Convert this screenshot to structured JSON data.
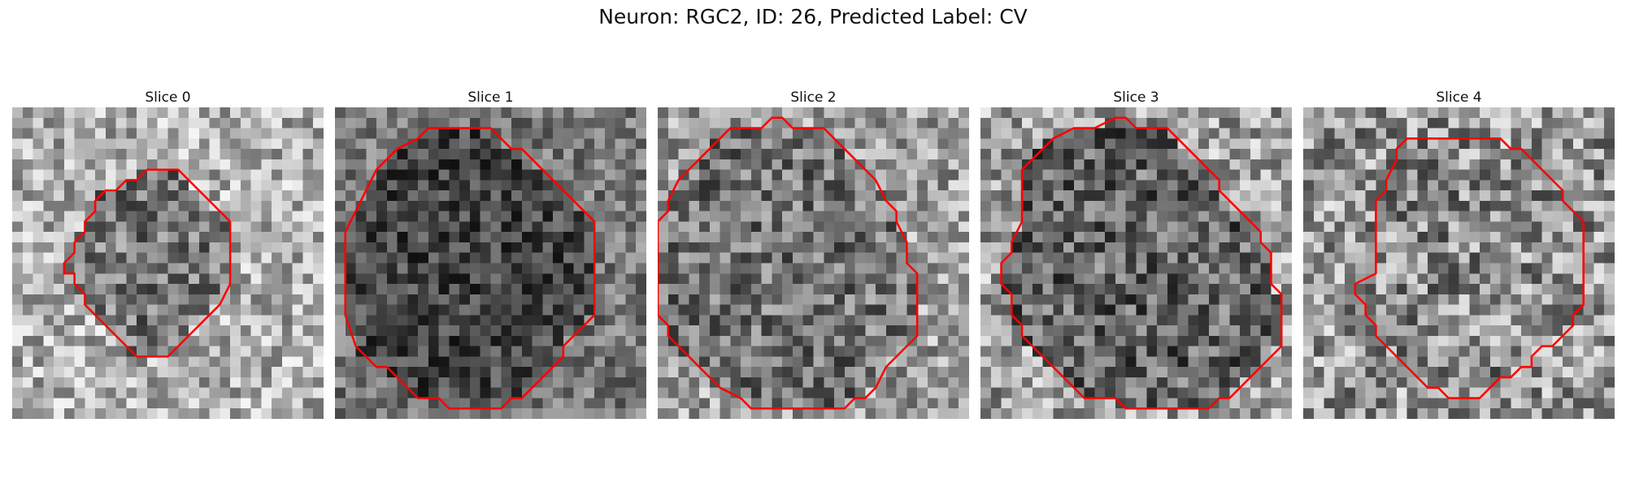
{
  "figure": {
    "title": "Neuron: RGC2, ID: 26, Predicted Label: CV"
  },
  "contour_color": "#ff0000",
  "colormap": "gray",
  "slices": [
    {
      "title": "Slice 0",
      "contour": [
        [
          15,
          6
        ],
        [
          16,
          6
        ],
        [
          17,
          7
        ],
        [
          19,
          9
        ],
        [
          21,
          11
        ],
        [
          21,
          17
        ],
        [
          20,
          19
        ],
        [
          19,
          20
        ],
        [
          17,
          22
        ],
        [
          16,
          23
        ],
        [
          15,
          24
        ],
        [
          12,
          24
        ],
        [
          11,
          23
        ],
        [
          10,
          22
        ],
        [
          9,
          21
        ],
        [
          8,
          20
        ],
        [
          7,
          19
        ],
        [
          7,
          18
        ],
        [
          6,
          17
        ],
        [
          6,
          16
        ],
        [
          5,
          16
        ],
        [
          5,
          15
        ],
        [
          6,
          14
        ],
        [
          6,
          13
        ],
        [
          7,
          12
        ],
        [
          7,
          11
        ],
        [
          8,
          10
        ],
        [
          8,
          9
        ],
        [
          9,
          8
        ],
        [
          10,
          8
        ],
        [
          11,
          7
        ],
        [
          12,
          7
        ],
        [
          13,
          6
        ]
      ]
    },
    {
      "title": "Slice 1",
      "contour": [
        [
          14,
          2
        ],
        [
          15,
          2
        ],
        [
          16,
          3
        ],
        [
          17,
          4
        ],
        [
          18,
          4
        ],
        [
          19,
          5
        ],
        [
          20,
          6
        ],
        [
          22,
          8
        ],
        [
          23,
          9
        ],
        [
          24,
          10
        ],
        [
          25,
          11
        ],
        [
          25,
          20
        ],
        [
          24,
          21
        ],
        [
          23,
          22
        ],
        [
          22,
          23
        ],
        [
          22,
          24
        ],
        [
          21,
          25
        ],
        [
          19,
          27
        ],
        [
          18,
          28
        ],
        [
          17,
          28
        ],
        [
          16,
          29
        ],
        [
          11,
          29
        ],
        [
          10,
          28
        ],
        [
          8,
          28
        ],
        [
          6,
          26
        ],
        [
          5,
          25
        ],
        [
          4,
          25
        ],
        [
          3,
          24
        ],
        [
          2,
          23
        ],
        [
          1,
          20
        ],
        [
          1,
          12
        ],
        [
          2,
          10
        ],
        [
          3,
          8
        ],
        [
          4,
          6
        ],
        [
          5,
          5
        ],
        [
          6,
          4
        ],
        [
          8,
          3
        ],
        [
          9,
          2
        ]
      ]
    },
    {
      "title": "Slice 2",
      "contour": [
        [
          11,
          1
        ],
        [
          12,
          1
        ],
        [
          13,
          2
        ],
        [
          16,
          2
        ],
        [
          17,
          3
        ],
        [
          18,
          4
        ],
        [
          19,
          5
        ],
        [
          20,
          6
        ],
        [
          21,
          7
        ],
        [
          22,
          9
        ],
        [
          23,
          10
        ],
        [
          23,
          11
        ],
        [
          24,
          13
        ],
        [
          24,
          15
        ],
        [
          25,
          16
        ],
        [
          25,
          22
        ],
        [
          24,
          23
        ],
        [
          23,
          24
        ],
        [
          22,
          25
        ],
        [
          21,
          27
        ],
        [
          20,
          28
        ],
        [
          19,
          28
        ],
        [
          18,
          29
        ],
        [
          9,
          29
        ],
        [
          8,
          28
        ],
        [
          6,
          27
        ],
        [
          5,
          26
        ],
        [
          4,
          25
        ],
        [
          3,
          24
        ],
        [
          2,
          23
        ],
        [
          1,
          22
        ],
        [
          1,
          21
        ],
        [
          0,
          20
        ],
        [
          0,
          11
        ],
        [
          1,
          10
        ],
        [
          1,
          9
        ],
        [
          2,
          7
        ],
        [
          3,
          6
        ],
        [
          4,
          5
        ],
        [
          5,
          4
        ],
        [
          6,
          3
        ],
        [
          7,
          2
        ],
        [
          10,
          2
        ]
      ]
    },
    {
      "title": "Slice 3",
      "contour": [
        [
          13,
          1
        ],
        [
          14,
          1
        ],
        [
          15,
          2
        ],
        [
          18,
          2
        ],
        [
          19,
          3
        ],
        [
          20,
          4
        ],
        [
          21,
          5
        ],
        [
          22,
          6
        ],
        [
          23,
          7
        ],
        [
          23,
          8
        ],
        [
          24,
          9
        ],
        [
          25,
          10
        ],
        [
          26,
          11
        ],
        [
          27,
          12
        ],
        [
          27,
          13
        ],
        [
          28,
          14
        ],
        [
          28,
          17
        ],
        [
          29,
          18
        ],
        [
          29,
          23
        ],
        [
          28,
          24
        ],
        [
          27,
          25
        ],
        [
          26,
          26
        ],
        [
          25,
          27
        ],
        [
          24,
          28
        ],
        [
          23,
          28
        ],
        [
          22,
          29
        ],
        [
          14,
          29
        ],
        [
          13,
          28
        ],
        [
          10,
          28
        ],
        [
          9,
          27
        ],
        [
          8,
          26
        ],
        [
          7,
          25
        ],
        [
          6,
          24
        ],
        [
          5,
          23
        ],
        [
          4,
          22
        ],
        [
          4,
          21
        ],
        [
          3,
          20
        ],
        [
          3,
          18
        ],
        [
          2,
          17
        ],
        [
          2,
          15
        ],
        [
          3,
          14
        ],
        [
          3,
          13
        ],
        [
          4,
          11
        ],
        [
          4,
          6
        ],
        [
          5,
          5
        ],
        [
          6,
          4
        ],
        [
          7,
          3
        ],
        [
          9,
          2
        ],
        [
          11,
          2
        ]
      ]
    },
    {
      "title": "Slice 4",
      "contour": [
        [
          10,
          3
        ],
        [
          19,
          3
        ],
        [
          20,
          4
        ],
        [
          21,
          4
        ],
        [
          22,
          5
        ],
        [
          23,
          6
        ],
        [
          24,
          7
        ],
        [
          25,
          8
        ],
        [
          25,
          9
        ],
        [
          26,
          10
        ],
        [
          27,
          11
        ],
        [
          27,
          19
        ],
        [
          26,
          20
        ],
        [
          26,
          21
        ],
        [
          25,
          22
        ],
        [
          24,
          23
        ],
        [
          23,
          23
        ],
        [
          22,
          24
        ],
        [
          22,
          25
        ],
        [
          21,
          25
        ],
        [
          20,
          26
        ],
        [
          19,
          26
        ],
        [
          18,
          27
        ],
        [
          17,
          28
        ],
        [
          16,
          28
        ],
        [
          14,
          28
        ],
        [
          13,
          27
        ],
        [
          12,
          27
        ],
        [
          11,
          26
        ],
        [
          10,
          25
        ],
        [
          9,
          24
        ],
        [
          8,
          23
        ],
        [
          7,
          22
        ],
        [
          7,
          21
        ],
        [
          6,
          20
        ],
        [
          6,
          19
        ],
        [
          5,
          18
        ],
        [
          5,
          17
        ],
        [
          7,
          16
        ],
        [
          7,
          9
        ],
        [
          8,
          8
        ],
        [
          8,
          7
        ],
        [
          9,
          5
        ],
        [
          9,
          4
        ]
      ]
    }
  ]
}
